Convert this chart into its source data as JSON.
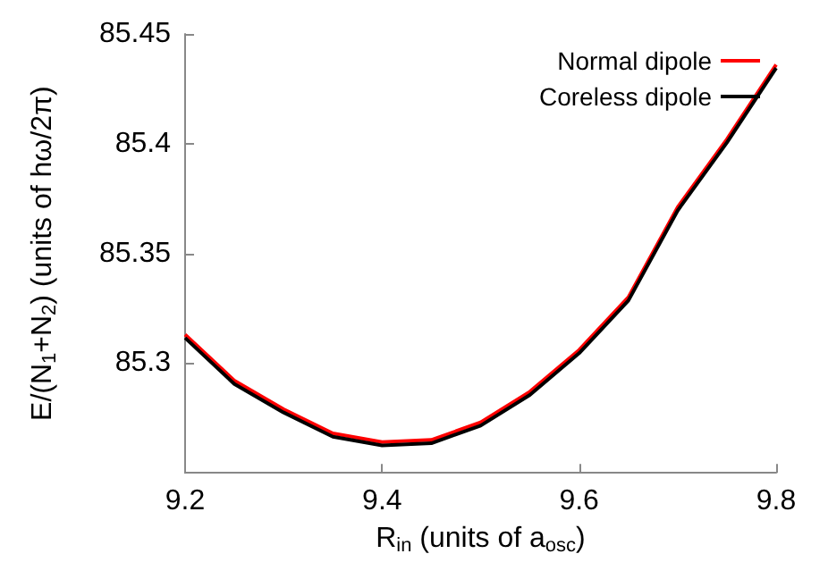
{
  "chart_data": {
    "type": "line",
    "xlabel": "R$_{in}$ (units of a$_{osc}$)",
    "ylabel": "E/(N$_{1}$+N$_{2}$) (units of hω/2π)",
    "x": [
      9.2,
      9.25,
      9.3,
      9.35,
      9.4,
      9.45,
      9.5,
      9.55,
      9.6,
      9.65,
      9.7,
      9.75,
      9.8
    ],
    "series": [
      {
        "name": "Normal dipole",
        "color": "#ff0000",
        "values": [
          85.313,
          85.292,
          85.279,
          85.268,
          85.264,
          85.265,
          85.273,
          85.287,
          85.306,
          85.33,
          85.371,
          85.402,
          85.436
        ]
      },
      {
        "name": "Coreless dipole",
        "color": "#000000",
        "values": [
          85.3115,
          85.2905,
          85.2775,
          85.2665,
          85.2625,
          85.2635,
          85.2715,
          85.2855,
          85.3045,
          85.3285,
          85.3695,
          85.4005,
          85.4345
        ]
      }
    ],
    "xlim": [
      9.2,
      9.8
    ],
    "xticks": [
      9.2,
      9.4,
      9.6,
      9.8
    ],
    "ylim": [
      85.25,
      85.45
    ],
    "yticks": [
      85.3,
      85.35,
      85.4,
      85.45
    ],
    "grid": false,
    "legend": "top right",
    "marker": "none",
    "line_style": "solid"
  }
}
